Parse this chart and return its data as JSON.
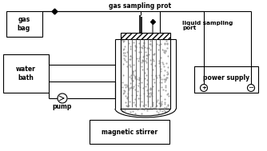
{
  "bg_color": "#ffffff",
  "line_color": "#000000",
  "labels": {
    "gas_sampling": "gas sampling prot",
    "gas_bag": "gas\nbag",
    "water_bath": "water\nbath",
    "pump": "pump",
    "magnetic_stirrer": "magnetic stirrer",
    "liquid_sampling": "liquid sampling\nport",
    "power_supply": "power supply"
  },
  "figsize": [
    3.34,
    1.89
  ],
  "dpi": 100
}
